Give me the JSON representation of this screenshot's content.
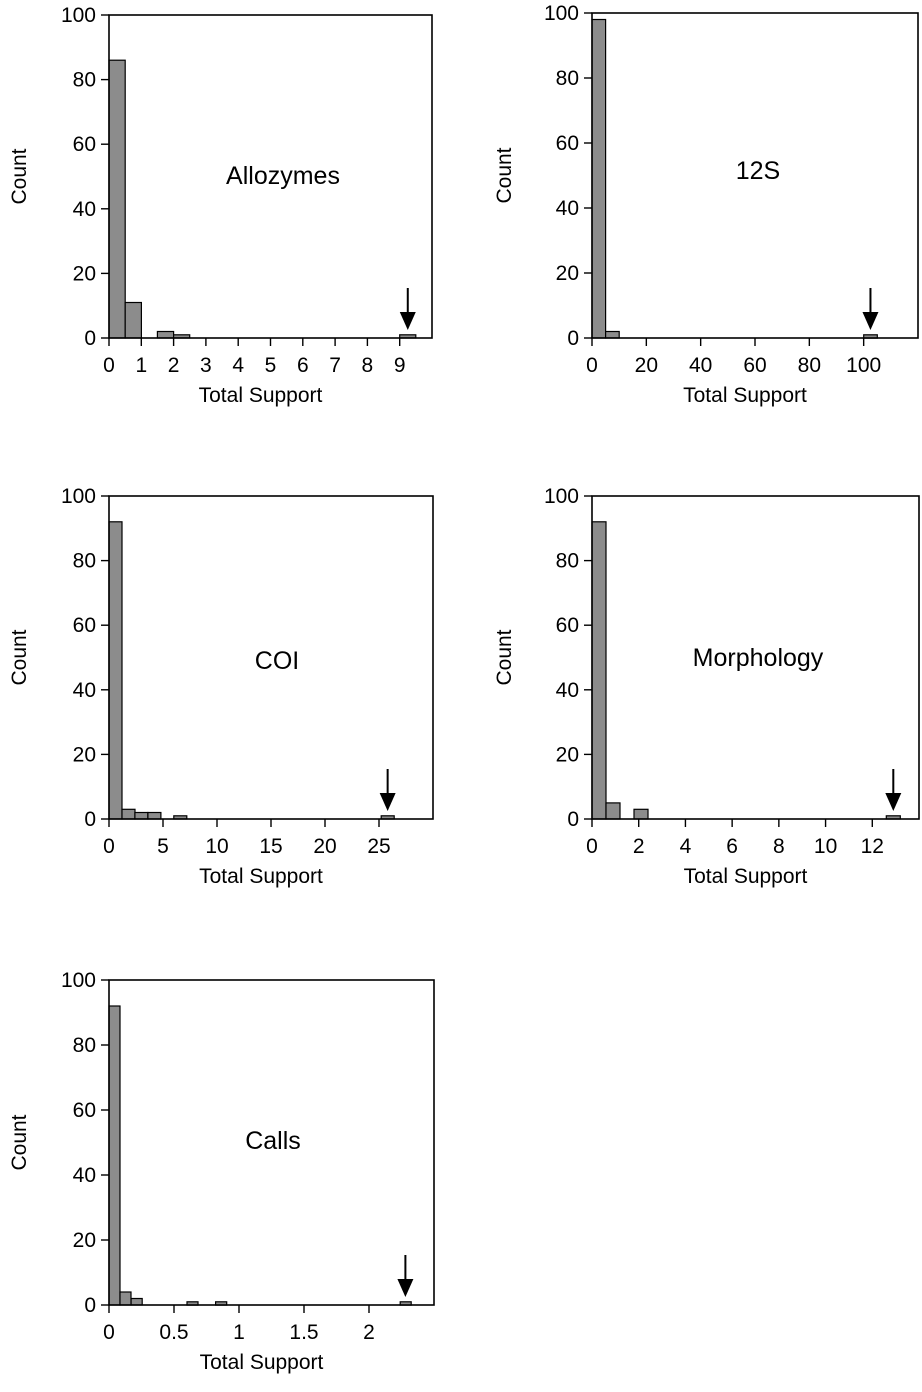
{
  "chart_data": [
    {
      "type": "bar",
      "annotation": "Allozymes",
      "xlabel": "Total Support",
      "ylabel": "Count",
      "ylim": [
        0,
        100
      ],
      "xlim": [
        0,
        10
      ],
      "bin_width": 0.5,
      "yticks": [
        0,
        20,
        40,
        60,
        80,
        100
      ],
      "xticks": [
        0,
        1,
        2,
        3,
        4,
        5,
        6,
        7,
        8,
        9
      ],
      "xtick_labels": [
        "0",
        "1",
        "2",
        "3",
        "4",
        "5",
        "6",
        "7",
        "8",
        "9"
      ],
      "ytick_labels": [
        "0",
        "20",
        "40",
        "60",
        "80",
        "100"
      ],
      "bins": [
        {
          "x": 0,
          "count": 86
        },
        {
          "x": 0.5,
          "count": 11
        },
        {
          "x": 1.5,
          "count": 2
        },
        {
          "x": 2,
          "count": 1
        },
        {
          "x": 9,
          "count": 1
        }
      ],
      "arrow_at": 9.25
    },
    {
      "type": "bar",
      "annotation": "12S",
      "xlabel": "Total Support",
      "ylabel": "Count",
      "ylim": [
        0,
        100
      ],
      "xlim": [
        0,
        120
      ],
      "bin_width": 5,
      "yticks": [
        0,
        20,
        40,
        60,
        80,
        100
      ],
      "xticks": [
        0,
        20,
        40,
        60,
        80,
        100
      ],
      "xtick_labels": [
        "0",
        "20",
        "40",
        "60",
        "80",
        "100"
      ],
      "ytick_labels": [
        "0",
        "20",
        "40",
        "60",
        "80",
        "100"
      ],
      "bins": [
        {
          "x": 0,
          "count": 98
        },
        {
          "x": 5,
          "count": 2
        },
        {
          "x": 100,
          "count": 1
        }
      ],
      "arrow_at": 102.5
    },
    {
      "type": "bar",
      "annotation": "COI",
      "xlabel": "Total Support",
      "ylabel": "Count",
      "ylim": [
        0,
        100
      ],
      "xlim": [
        0,
        30
      ],
      "bin_width": 1.2,
      "yticks": [
        0,
        20,
        40,
        60,
        80,
        100
      ],
      "xticks": [
        0,
        5,
        10,
        15,
        20,
        25
      ],
      "xtick_labels": [
        "0",
        "5",
        "10",
        "15",
        "20",
        "25"
      ],
      "ytick_labels": [
        "0",
        "20",
        "40",
        "60",
        "80",
        "100"
      ],
      "bins": [
        {
          "x": 0,
          "count": 92
        },
        {
          "x": 1.2,
          "count": 3
        },
        {
          "x": 2.4,
          "count": 2
        },
        {
          "x": 3.6,
          "count": 2
        },
        {
          "x": 6.0,
          "count": 1
        },
        {
          "x": 25.2,
          "count": 1
        }
      ],
      "arrow_at": 25.8
    },
    {
      "type": "bar",
      "annotation": "Morphology",
      "xlabel": "Total Support",
      "ylabel": "Count",
      "ylim": [
        0,
        100
      ],
      "xlim": [
        0,
        14
      ],
      "bin_width": 0.6,
      "yticks": [
        0,
        20,
        40,
        60,
        80,
        100
      ],
      "xticks": [
        0,
        2,
        4,
        6,
        8,
        10,
        12
      ],
      "xtick_labels": [
        "0",
        "2",
        "4",
        "6",
        "8",
        "10",
        "12"
      ],
      "ytick_labels": [
        "0",
        "20",
        "40",
        "60",
        "80",
        "100"
      ],
      "bins": [
        {
          "x": 0,
          "count": 92
        },
        {
          "x": 0.6,
          "count": 5
        },
        {
          "x": 1.8,
          "count": 3
        },
        {
          "x": 12.6,
          "count": 1
        }
      ],
      "arrow_at": 12.9
    },
    {
      "type": "bar",
      "annotation": "Calls",
      "xlabel": "Total Support",
      "ylabel": "Count",
      "ylim": [
        0,
        100
      ],
      "xlim": [
        0,
        2.5
      ],
      "bin_width": 0.085,
      "yticks": [
        0,
        20,
        40,
        60,
        80,
        100
      ],
      "xticks": [
        0,
        0.5,
        1,
        1.5,
        2
      ],
      "xtick_labels": [
        "0",
        "0.5",
        "1",
        "1.5",
        "2"
      ],
      "ytick_labels": [
        "0",
        "20",
        "40",
        "60",
        "80",
        "100"
      ],
      "bins": [
        {
          "x": 0,
          "count": 92
        },
        {
          "x": 0.085,
          "count": 4
        },
        {
          "x": 0.17,
          "count": 2
        },
        {
          "x": 0.6,
          "count": 1
        },
        {
          "x": 0.82,
          "count": 1
        },
        {
          "x": 2.24,
          "count": 1
        }
      ],
      "arrow_at": 2.28
    }
  ]
}
